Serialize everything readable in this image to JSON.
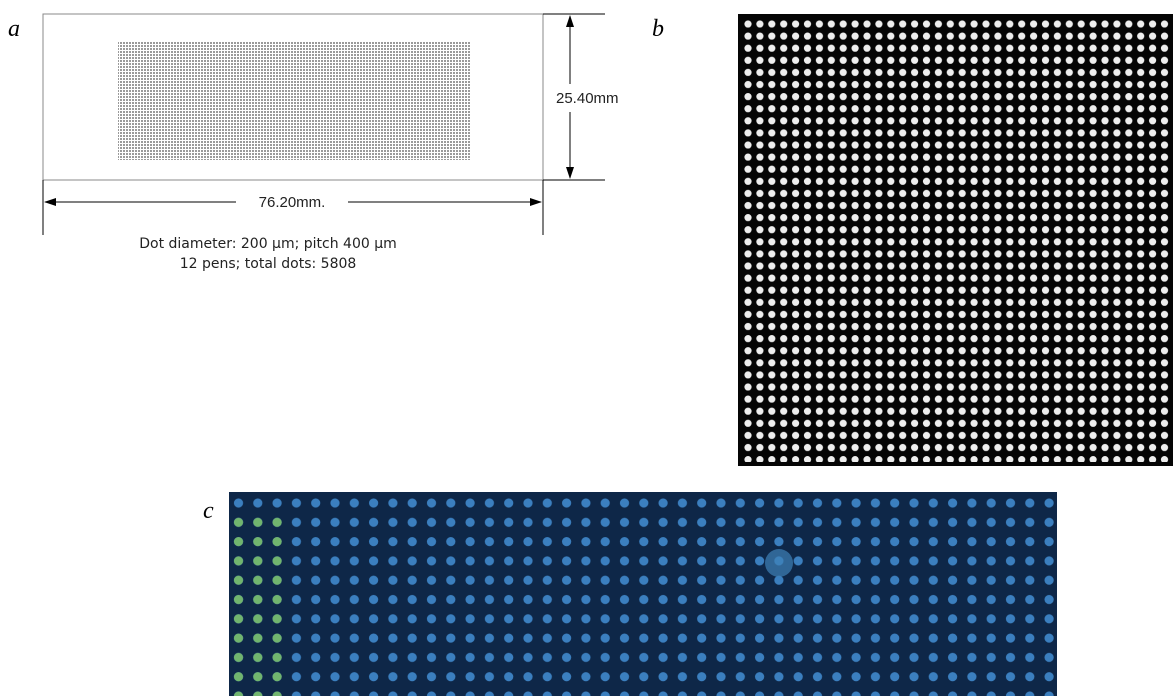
{
  "panels": {
    "a": {
      "label": "a",
      "height_dimension": "25.40mm",
      "width_dimension": "76.20mm.",
      "caption": [
        "Dot diameter: 200 μm; pitch 400 μm",
        "12 pens; total dots: 5808"
      ]
    },
    "b": {
      "label": "b"
    },
    "c": {
      "label": "c"
    }
  }
}
